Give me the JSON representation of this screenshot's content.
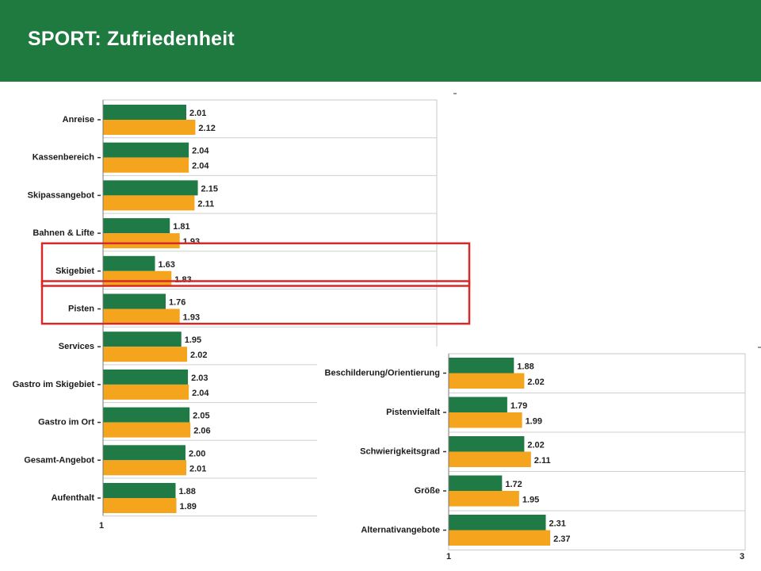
{
  "header": {
    "title": "SPORT: Zufriedenheit"
  },
  "colors": {
    "header_bg": "#1e7a3f",
    "series_a": "#1f7a45",
    "series_b": "#f5a41e",
    "highlight": "#d62a2a"
  },
  "chart_data": [
    {
      "type": "bar",
      "orientation": "horizontal",
      "categories": [
        "Anreise",
        "Kassenbereich",
        "Skipassangebot",
        "Bahnen & Lifte",
        "Skigebiet",
        "Pisten",
        "Services",
        "Gastro im Skigebiet",
        "Gastro im Ort",
        "Gesamt-Angebot",
        "Aufenthalt"
      ],
      "series": [
        {
          "values": [
            2.01,
            2.04,
            2.15,
            1.81,
            1.63,
            1.76,
            1.95,
            2.03,
            2.05,
            2.0,
            1.88
          ]
        },
        {
          "values": [
            2.12,
            2.04,
            2.11,
            1.93,
            1.83,
            1.93,
            2.02,
            2.04,
            2.06,
            2.01,
            1.89
          ]
        }
      ],
      "value_labels": [
        [
          "2.01",
          "2.04",
          "2.15",
          "1.81",
          "1.63",
          "1.76",
          "1.95",
          "2.03",
          "2.05",
          "2.00",
          "1.88"
        ],
        [
          "2.12",
          "2.04",
          "2.11",
          "1.93",
          "1.83",
          "1.93",
          "2.02",
          "2.04",
          "2.06",
          "2.01",
          "1.89"
        ]
      ],
      "xlim": [
        1,
        3
      ],
      "x_tick_labels": [
        "1"
      ],
      "highlighted_categories": [
        "Skigebiet",
        "Pisten"
      ],
      "grid": "horizontal"
    },
    {
      "type": "bar",
      "orientation": "horizontal",
      "categories": [
        "Beschilderung/Orientierung",
        "Pistenvielfalt",
        "Schwierigkeitsgrad",
        "Größe",
        "Alternativangebote"
      ],
      "series": [
        {
          "values": [
            1.88,
            1.79,
            2.02,
            1.72,
            2.31
          ]
        },
        {
          "values": [
            2.02,
            1.99,
            2.11,
            1.95,
            2.37
          ]
        }
      ],
      "value_labels": [
        [
          "1.88",
          "1.79",
          "2.02",
          "1.72",
          "2.31"
        ],
        [
          "2.02",
          "1.99",
          "2.11",
          "1.95",
          "2.37"
        ]
      ],
      "xlim": [
        1,
        3
      ],
      "x_tick_labels": [
        "1",
        "3"
      ],
      "grid": "horizontal"
    }
  ]
}
